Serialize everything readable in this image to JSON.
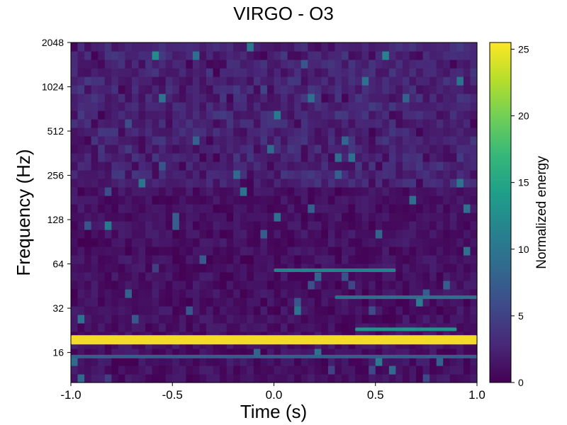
{
  "chart_data": {
    "type": "heatmap",
    "title": "VIRGO - O3",
    "xlabel": "Time (s)",
    "ylabel": "Frequency (Hz)",
    "colorbar_label": "Normalized energy",
    "xlim": [
      -1.0,
      1.0
    ],
    "ylim": [
      10,
      2048
    ],
    "yscale": "log2",
    "x_ticks": [
      "-1.0",
      "-0.5",
      "0.0",
      "0.5",
      "1.0"
    ],
    "x_tick_values": [
      -1.0,
      -0.5,
      0.0,
      0.5,
      1.0
    ],
    "y_ticks": [
      "16",
      "32",
      "64",
      "128",
      "256",
      "512",
      "1024",
      "2048"
    ],
    "y_tick_values": [
      16,
      32,
      64,
      128,
      256,
      512,
      1024,
      2048
    ],
    "colorbar_range": [
      0,
      25.5
    ],
    "colorbar_ticks": [
      "0",
      "5",
      "10",
      "15",
      "20",
      "25"
    ],
    "colorbar_tick_values": [
      0,
      5,
      10,
      15,
      20,
      25
    ],
    "colormap": "viridis",
    "colormap_stops": [
      "#440154",
      "#482878",
      "#3e4989",
      "#31688e",
      "#26828e",
      "#1f9e89",
      "#35b779",
      "#6ece58",
      "#b5de2b",
      "#fde725"
    ],
    "features": [
      {
        "t_start": -1.0,
        "t_end": 1.0,
        "freq": 19.5,
        "energy": 25.5
      },
      {
        "t_start": 0.0,
        "t_end": 0.6,
        "freq": 58,
        "energy": 12
      },
      {
        "t_start": 0.3,
        "t_end": 1.0,
        "freq": 38,
        "energy": 10
      },
      {
        "t_start": 0.4,
        "t_end": 0.9,
        "freq": 23,
        "energy": 14
      },
      {
        "t_start": -1.0,
        "t_end": 1.0,
        "freq": 15,
        "energy": 8
      }
    ]
  }
}
